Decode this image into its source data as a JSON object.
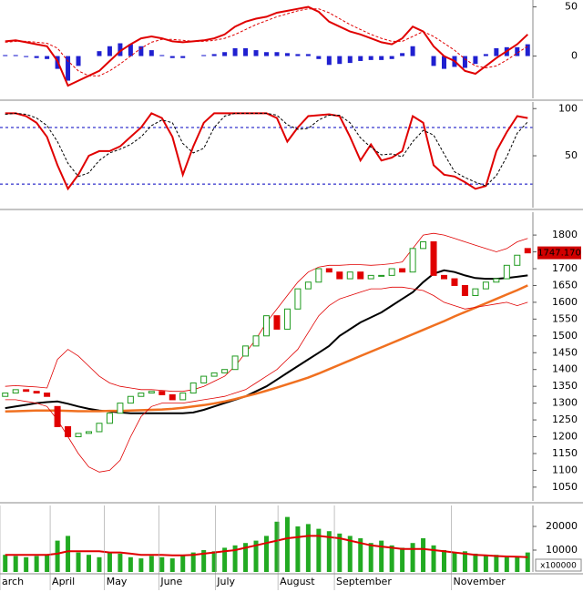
{
  "chart_data": [
    {
      "type": "macd",
      "xlim": [
        -0.5,
        50.5
      ],
      "ylim": [
        -43,
        57
      ],
      "yticks": [
        0,
        50
      ],
      "series": [
        {
          "color": "#e00000",
          "width": 2,
          "values": [
            15,
            16,
            14,
            12,
            10,
            -5,
            -30,
            -25,
            -20,
            -15,
            -5,
            5,
            12,
            18,
            20,
            18,
            15,
            14,
            15,
            16,
            18,
            22,
            30,
            35,
            38,
            40,
            44,
            46,
            48,
            50,
            45,
            35,
            30,
            25,
            22,
            18,
            14,
            12,
            18,
            30,
            25,
            10,
            0,
            -5,
            -15,
            -18,
            -10,
            -2,
            5,
            12,
            22
          ]
        },
        {
          "color": "#e00000",
          "width": 1,
          "dash": true,
          "values": [
            14,
            15,
            15,
            14,
            13,
            8,
            -5,
            -15,
            -20,
            -20,
            -15,
            -8,
            0,
            8,
            14,
            17,
            17,
            16,
            15,
            15,
            16,
            18,
            22,
            27,
            32,
            36,
            40,
            43,
            46,
            48,
            48,
            44,
            38,
            32,
            27,
            22,
            18,
            15,
            15,
            20,
            25,
            20,
            13,
            6,
            -3,
            -10,
            -12,
            -10,
            -4,
            3,
            10
          ]
        }
      ],
      "histogram": {
        "color": "#2020d0",
        "values": [
          1,
          1,
          -1,
          -2,
          -3,
          -13,
          -25,
          -10,
          0,
          5,
          10,
          13,
          12,
          10,
          6,
          1,
          -2,
          -2,
          0,
          1,
          2,
          4,
          8,
          8,
          6,
          4,
          4,
          3,
          2,
          2,
          -3,
          -9,
          -8,
          -7,
          -5,
          -4,
          -4,
          -3,
          3,
          10,
          0,
          -10,
          -13,
          -11,
          -12,
          -8,
          2,
          8,
          9,
          9,
          12
        ]
      }
    },
    {
      "type": "stochastic",
      "xlim": [
        -0.5,
        50.5
      ],
      "ylim": [
        -5,
        107
      ],
      "yticks": [
        50,
        100
      ],
      "levels": [
        80,
        20
      ],
      "level_color": "#0000c0",
      "series": [
        {
          "color": "#e00000",
          "width": 2,
          "values": [
            95,
            95,
            92,
            85,
            70,
            40,
            15,
            30,
            50,
            55,
            55,
            60,
            70,
            80,
            95,
            90,
            70,
            30,
            60,
            85,
            95,
            95,
            95,
            95,
            95,
            95,
            90,
            65,
            80,
            92,
            93,
            94,
            92,
            70,
            45,
            62,
            45,
            48,
            55,
            92,
            85,
            40,
            30,
            28,
            22,
            15,
            18,
            55,
            75,
            92,
            90
          ]
        },
        {
          "color": "#000000",
          "width": 1,
          "dash": true,
          "values": [
            94,
            95,
            94,
            90,
            82,
            65,
            42,
            28,
            32,
            45,
            53,
            57,
            62,
            70,
            82,
            88,
            85,
            63,
            53,
            58,
            80,
            92,
            95,
            95,
            95,
            95,
            93,
            83,
            78,
            79,
            88,
            93,
            93,
            85,
            69,
            59,
            51,
            52,
            49,
            65,
            77,
            72,
            52,
            33,
            27,
            22,
            18,
            29,
            49,
            74,
            86
          ]
        }
      ]
    },
    {
      "type": "candlestick",
      "xlim": [
        -0.5,
        50.5
      ],
      "ylim": [
        1009,
        1868
      ],
      "yticks": [
        1050,
        1100,
        1150,
        1200,
        1250,
        1300,
        1350,
        1400,
        1450,
        1500,
        1550,
        1600,
        1650,
        1700,
        1750,
        1800
      ],
      "up_color": "#1f9a1f",
      "down_color": "#e00000",
      "open": [
        1320,
        1330,
        1340,
        1335,
        1330,
        1290,
        1230,
        1200,
        1210,
        1215,
        1240,
        1270,
        1300,
        1320,
        1330,
        1335,
        1325,
        1310,
        1330,
        1360,
        1380,
        1390,
        1400,
        1440,
        1470,
        1500,
        1560,
        1520,
        1580,
        1640,
        1660,
        1700,
        1690,
        1670,
        1690,
        1670,
        1680,
        1680,
        1700,
        1690,
        1760,
        1780,
        1680,
        1670,
        1650,
        1620,
        1640,
        1660,
        1670,
        1710,
        1760
      ],
      "close": [
        1330,
        1340,
        1335,
        1330,
        1320,
        1230,
        1200,
        1210,
        1215,
        1240,
        1270,
        1300,
        1320,
        1330,
        1335,
        1325,
        1310,
        1330,
        1360,
        1380,
        1390,
        1400,
        1440,
        1470,
        1500,
        1560,
        1520,
        1580,
        1640,
        1660,
        1700,
        1690,
        1670,
        1690,
        1670,
        1680,
        1680,
        1700,
        1690,
        1760,
        1780,
        1680,
        1670,
        1650,
        1620,
        1640,
        1660,
        1670,
        1710,
        1740,
        1747
      ],
      "series": [
        {
          "color": "#000000",
          "width": 2,
          "values": [
            1285,
            1290,
            1295,
            1300,
            1303,
            1305,
            1298,
            1290,
            1283,
            1278,
            1275,
            1272,
            1270,
            1270,
            1270,
            1270,
            1270,
            1270,
            1272,
            1280,
            1290,
            1300,
            1310,
            1320,
            1335,
            1350,
            1370,
            1390,
            1410,
            1430,
            1450,
            1470,
            1500,
            1520,
            1540,
            1555,
            1570,
            1590,
            1610,
            1630,
            1660,
            1685,
            1695,
            1690,
            1680,
            1672,
            1670,
            1670,
            1672,
            1676,
            1680
          ]
        },
        {
          "color": "#f07020",
          "width": 2.5,
          "values": [
            1275,
            1276,
            1277,
            1278,
            1278,
            1278,
            1277,
            1276,
            1276,
            1276,
            1277,
            1277,
            1278,
            1279,
            1280,
            1281,
            1283,
            1286,
            1290,
            1294,
            1299,
            1305,
            1312,
            1320,
            1328,
            1337,
            1346,
            1356,
            1366,
            1376,
            1388,
            1401,
            1414,
            1427,
            1440,
            1453,
            1466,
            1479,
            1492,
            1505,
            1518,
            1531,
            1544,
            1558,
            1571,
            1584,
            1597,
            1610,
            1623,
            1636,
            1650
          ]
        },
        {
          "color": "#e00000",
          "width": 0.8,
          "values": [
            1350,
            1352,
            1350,
            1348,
            1345,
            1430,
            1460,
            1440,
            1410,
            1380,
            1360,
            1350,
            1345,
            1340,
            1340,
            1338,
            1335,
            1335,
            1340,
            1350,
            1365,
            1380,
            1410,
            1450,
            1490,
            1540,
            1580,
            1620,
            1660,
            1690,
            1705,
            1710,
            1710,
            1712,
            1712,
            1710,
            1712,
            1715,
            1720,
            1760,
            1800,
            1805,
            1800,
            1790,
            1780,
            1770,
            1760,
            1750,
            1760,
            1780,
            1790
          ]
        },
        {
          "color": "#e00000",
          "width": 0.8,
          "values": [
            1310,
            1310,
            1305,
            1300,
            1290,
            1250,
            1200,
            1150,
            1110,
            1095,
            1100,
            1130,
            1200,
            1260,
            1290,
            1300,
            1300,
            1300,
            1305,
            1310,
            1315,
            1320,
            1330,
            1340,
            1360,
            1380,
            1400,
            1430,
            1460,
            1510,
            1560,
            1590,
            1610,
            1620,
            1630,
            1640,
            1640,
            1645,
            1645,
            1640,
            1635,
            1620,
            1600,
            1590,
            1580,
            1585,
            1590,
            1595,
            1600,
            1590,
            1600
          ]
        }
      ],
      "annotation": {
        "value": 1747.17,
        "label": "1747.170",
        "color": "#d00000"
      }
    },
    {
      "type": "bar",
      "xlim": [
        -0.5,
        50.5
      ],
      "ylim": [
        770,
        28850
      ],
      "yticks": [
        10000,
        20000
      ],
      "color": "#22aa22",
      "unit_label": "x100000",
      "values": [
        8000,
        7500,
        7000,
        7500,
        8000,
        14000,
        16000,
        9000,
        8000,
        7000,
        9000,
        8500,
        7000,
        6500,
        7500,
        7000,
        6500,
        8000,
        9000,
        10000,
        9500,
        11000,
        12000,
        13000,
        14000,
        16000,
        22000,
        24000,
        20000,
        21000,
        19000,
        18000,
        17000,
        16000,
        15000,
        13000,
        14000,
        12000,
        11000,
        13000,
        15000,
        12000,
        10000,
        9000,
        9500,
        8500,
        7500,
        8000,
        7000,
        7500,
        9000
      ],
      "series": [
        {
          "color": "#e00000",
          "width": 2,
          "values": [
            8000,
            8000,
            8000,
            8000,
            8000,
            8500,
            9500,
            9500,
            9500,
            9500,
            9000,
            9000,
            8500,
            8000,
            8000,
            8000,
            7800,
            7800,
            8000,
            8500,
            9000,
            9500,
            10000,
            11000,
            12000,
            13000,
            14000,
            15000,
            15500,
            16000,
            16000,
            15500,
            15000,
            14000,
            13000,
            12000,
            11500,
            11000,
            10500,
            10500,
            10500,
            10000,
            9500,
            9000,
            8500,
            8000,
            7800,
            7500,
            7300,
            7200,
            7000
          ]
        }
      ],
      "xticks": [
        {
          "value": -0.5,
          "label": "arch"
        },
        {
          "value": 4.3,
          "label": "April"
        },
        {
          "value": 9.5,
          "label": "May"
        },
        {
          "value": 14.7,
          "label": "June"
        },
        {
          "value": 20.1,
          "label": "July"
        },
        {
          "value": 26.1,
          "label": "August"
        },
        {
          "value": 31.5,
          "label": "September"
        },
        {
          "value": 42.7,
          "label": "November"
        }
      ]
    }
  ]
}
